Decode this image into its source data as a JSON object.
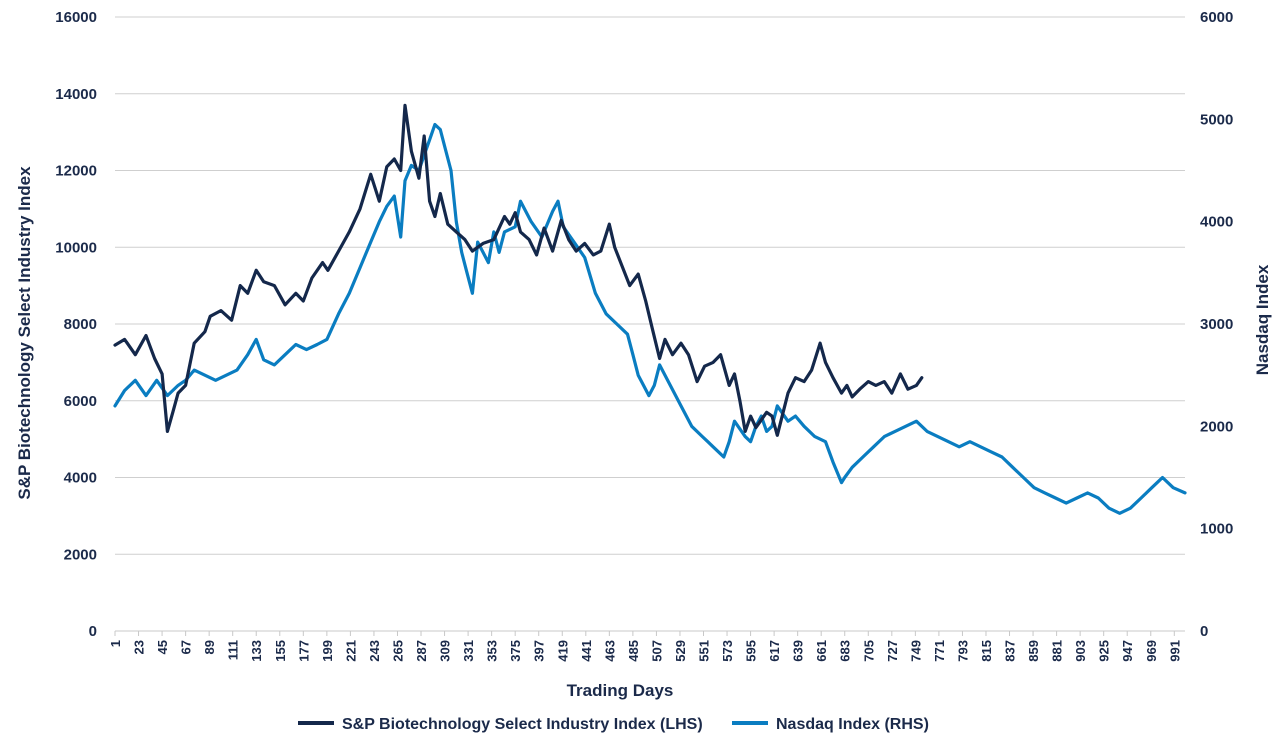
{
  "chart_data": {
    "type": "line",
    "xlabel": "Trading Days",
    "ylabel_left": "S&P Biotechnology Select Industry Index",
    "ylabel_right": "Nasdaq Index",
    "ylim_left": [
      0,
      16000
    ],
    "ylim_right": [
      0,
      6000
    ],
    "yticks_left": [
      "0",
      "2000",
      "4000",
      "6000",
      "8000",
      "10000",
      "12000",
      "14000",
      "16000"
    ],
    "yticks_right": [
      "0",
      "1000",
      "2000",
      "3000",
      "4000",
      "5000",
      "6000"
    ],
    "xlim": [
      1,
      1001
    ],
    "x_ticks": [
      "1",
      "23",
      "45",
      "67",
      "89",
      "111",
      "133",
      "155",
      "177",
      "199",
      "221",
      "243",
      "265",
      "287",
      "309",
      "331",
      "353",
      "375",
      "397",
      "419",
      "441",
      "463",
      "485",
      "507",
      "529",
      "551",
      "573",
      "595",
      "617",
      "639",
      "661",
      "683",
      "705",
      "727",
      "749",
      "771",
      "793",
      "815",
      "837",
      "859",
      "881",
      "903",
      "925",
      "947",
      "969",
      "991"
    ],
    "grid": "horizontal",
    "legend_position": "bottom",
    "colors": {
      "biotech": "#14284b",
      "nasdaq": "#0a7dc1",
      "grid": "#cfcfcf",
      "text": "#1b2a4a"
    },
    "series": [
      {
        "name": "S&P Biotechnology Select Industry Index (LHS)",
        "axis": "left",
        "x": [
          1,
          10,
          20,
          30,
          38,
          45,
          50,
          55,
          60,
          67,
          75,
          85,
          90,
          100,
          110,
          118,
          125,
          133,
          140,
          150,
          160,
          170,
          177,
          185,
          195,
          200,
          210,
          220,
          230,
          240,
          248,
          255,
          262,
          268,
          272,
          278,
          285,
          290,
          295,
          300,
          305,
          312,
          320,
          328,
          335,
          345,
          355,
          365,
          370,
          375,
          380,
          388,
          395,
          402,
          410,
          418,
          425,
          432,
          440,
          448,
          455,
          463,
          468,
          475,
          482,
          490,
          497,
          503,
          510,
          515,
          522,
          530,
          537,
          545,
          552,
          560,
          567,
          575,
          580,
          585,
          590,
          595,
          600,
          605,
          610,
          615,
          620,
          630,
          637,
          645,
          652,
          660,
          665,
          672,
          680,
          685,
          690,
          697,
          705,
          712,
          720,
          727,
          735,
          742,
          750,
          755
        ],
        "values": [
          7450,
          7600,
          7200,
          7700,
          7100,
          6700,
          5200,
          5700,
          6200,
          6400,
          7500,
          7800,
          8200,
          8350,
          8100,
          9000,
          8800,
          9400,
          9100,
          9000,
          8500,
          8800,
          8600,
          9200,
          9600,
          9400,
          9900,
          10400,
          11000,
          11900,
          11200,
          12100,
          12300,
          12000,
          13700,
          12500,
          11800,
          12900,
          11200,
          10800,
          11400,
          10600,
          10400,
          10200,
          9900,
          10100,
          10200,
          10800,
          10600,
          10900,
          10400,
          10200,
          9800,
          10500,
          9900,
          10700,
          10200,
          9900,
          10100,
          9800,
          9900,
          10600,
          10000,
          9500,
          9000,
          9300,
          8600,
          7900,
          7100,
          7600,
          7200,
          7500,
          7200,
          6500,
          6900,
          7000,
          7200,
          6400,
          6700,
          6000,
          5200,
          5600,
          5300,
          5500,
          5700,
          5600,
          5100,
          6200,
          6600,
          6500,
          6800,
          7500,
          7000,
          6600,
          6200,
          6400,
          6100,
          6300,
          6500,
          6400,
          6500,
          6200,
          6700,
          6300,
          6400,
          6600
        ]
      },
      {
        "name": "Nasdaq Index (RHS)",
        "axis": "right",
        "x": [
          1,
          10,
          20,
          30,
          40,
          50,
          60,
          67,
          75,
          85,
          95,
          105,
          115,
          125,
          133,
          140,
          150,
          160,
          170,
          180,
          190,
          199,
          210,
          220,
          230,
          240,
          248,
          255,
          262,
          268,
          272,
          278,
          285,
          290,
          295,
          300,
          305,
          310,
          315,
          320,
          325,
          330,
          335,
          340,
          345,
          350,
          355,
          360,
          365,
          375,
          380,
          390,
          400,
          410,
          415,
          420,
          430,
          440,
          450,
          460,
          470,
          480,
          485,
          490,
          500,
          505,
          510,
          520,
          530,
          540,
          550,
          555,
          560,
          565,
          570,
          575,
          580,
          590,
          595,
          600,
          605,
          610,
          615,
          620,
          630,
          637,
          645,
          655,
          665,
          672,
          680,
          683,
          690,
          700,
          710,
          720,
          730,
          740,
          750,
          760,
          770,
          780,
          790,
          800,
          810,
          820,
          830,
          840,
          850,
          860,
          870,
          880,
          890,
          900,
          910,
          920,
          930,
          940,
          950,
          960,
          970,
          975,
          980,
          990,
          1001
        ],
        "values": [
          2200,
          2350,
          2450,
          2300,
          2450,
          2300,
          2400,
          2450,
          2550,
          2500,
          2450,
          2500,
          2550,
          2700,
          2850,
          2650,
          2600,
          2700,
          2800,
          2750,
          2800,
          2850,
          3100,
          3300,
          3550,
          3800,
          4000,
          4150,
          4250,
          3850,
          4400,
          4550,
          4500,
          4650,
          4800,
          4950,
          4900,
          4700,
          4500,
          4000,
          3700,
          3500,
          3300,
          3800,
          3700,
          3600,
          3900,
          3700,
          3900,
          3950,
          4200,
          4000,
          3850,
          4100,
          4200,
          3950,
          3800,
          3650,
          3300,
          3100,
          3000,
          2900,
          2700,
          2500,
          2300,
          2400,
          2600,
          2400,
          2200,
          2000,
          1900,
          1850,
          1800,
          1750,
          1700,
          1850,
          2050,
          1900,
          1850,
          2000,
          2100,
          1950,
          2000,
          2200,
          2050,
          2100,
          2000,
          1900,
          1850,
          1650,
          1450,
          1500,
          1600,
          1700,
          1800,
          1900,
          1950,
          2000,
          2050,
          1950,
          1900,
          1850,
          1800,
          1850,
          1800,
          1750,
          1700,
          1600,
          1500,
          1400,
          1350,
          1300,
          1250,
          1300,
          1350,
          1300,
          1200,
          1150,
          1200,
          1300,
          1400,
          1450,
          1500,
          1400,
          1350
        ]
      }
    ]
  }
}
